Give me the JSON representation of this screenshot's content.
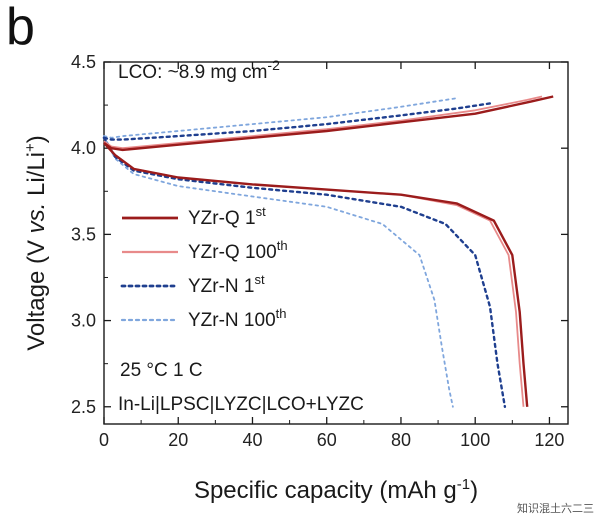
{
  "panel_label": "b",
  "annotation_top": {
    "prefix": "LCO: ~8.9 mg cm",
    "superscript": "-2"
  },
  "annotation_conditions": "25 °C  1 C",
  "annotation_cell": "In-Li|LPSC|LYZC|LCO+LYZC",
  "watermark": "知识混土六二三",
  "chart_data": {
    "type": "line",
    "xlabel": "Specific capacity (mAh g",
    "xlabel_sup": "-1",
    "xlabel_end": ")",
    "ylabel_parts": [
      "Voltage (V ",
      "vs.",
      " Li/Li",
      "+",
      ")"
    ],
    "xlim": [
      0,
      125
    ],
    "ylim": [
      2.4,
      4.5
    ],
    "xticks": [
      0,
      20,
      40,
      60,
      80,
      100,
      120
    ],
    "yticks": [
      2.5,
      3.0,
      3.5,
      4.0,
      4.5
    ],
    "ytick_labels": [
      "2.5",
      "3.0",
      "3.5",
      "4.0",
      "4.5"
    ],
    "series": [
      {
        "name": "YZr-Q 1st",
        "name_main": "YZr-Q 1",
        "name_sup": "st",
        "color": "#9b1c1c",
        "style": "solid",
        "width": 2.4,
        "charge": [
          [
            0,
            4.03
          ],
          [
            2,
            4.0
          ],
          [
            5,
            3.99
          ],
          [
            20,
            4.02
          ],
          [
            40,
            4.06
          ],
          [
            60,
            4.1
          ],
          [
            80,
            4.15
          ],
          [
            100,
            4.2
          ],
          [
            115,
            4.27
          ],
          [
            121,
            4.3
          ]
        ],
        "discharge": [
          [
            0,
            4.03
          ],
          [
            3,
            3.96
          ],
          [
            8,
            3.88
          ],
          [
            20,
            3.83
          ],
          [
            40,
            3.79
          ],
          [
            60,
            3.76
          ],
          [
            80,
            3.73
          ],
          [
            95,
            3.68
          ],
          [
            105,
            3.58
          ],
          [
            110,
            3.38
          ],
          [
            112,
            3.05
          ],
          [
            113,
            2.75
          ],
          [
            114,
            2.5
          ]
        ]
      },
      {
        "name": "YZr-Q 100th",
        "name_main": "YZr-Q 100",
        "name_sup": "th",
        "color": "#e88a8a",
        "style": "solid",
        "width": 1.8,
        "charge": [
          [
            0,
            4.04
          ],
          [
            2,
            4.01
          ],
          [
            5,
            4.0
          ],
          [
            20,
            4.03
          ],
          [
            40,
            4.07
          ],
          [
            60,
            4.11
          ],
          [
            80,
            4.16
          ],
          [
            100,
            4.22
          ],
          [
            114,
            4.28
          ],
          [
            118,
            4.3
          ]
        ],
        "discharge": [
          [
            0,
            4.04
          ],
          [
            3,
            3.96
          ],
          [
            8,
            3.88
          ],
          [
            20,
            3.83
          ],
          [
            40,
            3.79
          ],
          [
            60,
            3.76
          ],
          [
            80,
            3.73
          ],
          [
            95,
            3.67
          ],
          [
            104,
            3.58
          ],
          [
            109,
            3.38
          ],
          [
            111,
            3.05
          ],
          [
            112,
            2.75
          ],
          [
            113,
            2.5
          ]
        ]
      },
      {
        "name": "YZr-N 1st",
        "name_main": "YZr-N 1",
        "name_sup": "st",
        "color": "#1f3f8f",
        "style": "dotted",
        "width": 2.4,
        "charge": [
          [
            0,
            4.06
          ],
          [
            2,
            4.05
          ],
          [
            5,
            4.05
          ],
          [
            20,
            4.07
          ],
          [
            40,
            4.1
          ],
          [
            60,
            4.14
          ],
          [
            80,
            4.19
          ],
          [
            95,
            4.23
          ],
          [
            104,
            4.26
          ]
        ],
        "discharge": [
          [
            0,
            4.06
          ],
          [
            3,
            3.95
          ],
          [
            8,
            3.87
          ],
          [
            20,
            3.82
          ],
          [
            40,
            3.77
          ],
          [
            60,
            3.73
          ],
          [
            80,
            3.66
          ],
          [
            92,
            3.56
          ],
          [
            100,
            3.38
          ],
          [
            104,
            3.08
          ],
          [
            106,
            2.75
          ],
          [
            108,
            2.5
          ]
        ]
      },
      {
        "name": "YZr-N 100th",
        "name_main": "YZr-N 100",
        "name_sup": "th",
        "color": "#7fa6dd",
        "style": "dotted",
        "width": 1.8,
        "charge": [
          [
            0,
            4.07
          ],
          [
            2,
            4.06
          ],
          [
            5,
            4.07
          ],
          [
            20,
            4.1
          ],
          [
            40,
            4.14
          ],
          [
            60,
            4.18
          ],
          [
            80,
            4.24
          ],
          [
            95,
            4.29
          ]
        ],
        "discharge": [
          [
            0,
            4.07
          ],
          [
            3,
            3.94
          ],
          [
            8,
            3.85
          ],
          [
            20,
            3.78
          ],
          [
            40,
            3.72
          ],
          [
            60,
            3.66
          ],
          [
            75,
            3.56
          ],
          [
            85,
            3.38
          ],
          [
            89,
            3.12
          ],
          [
            91,
            2.85
          ],
          [
            93,
            2.6
          ],
          [
            94,
            2.5
          ]
        ]
      }
    ]
  }
}
